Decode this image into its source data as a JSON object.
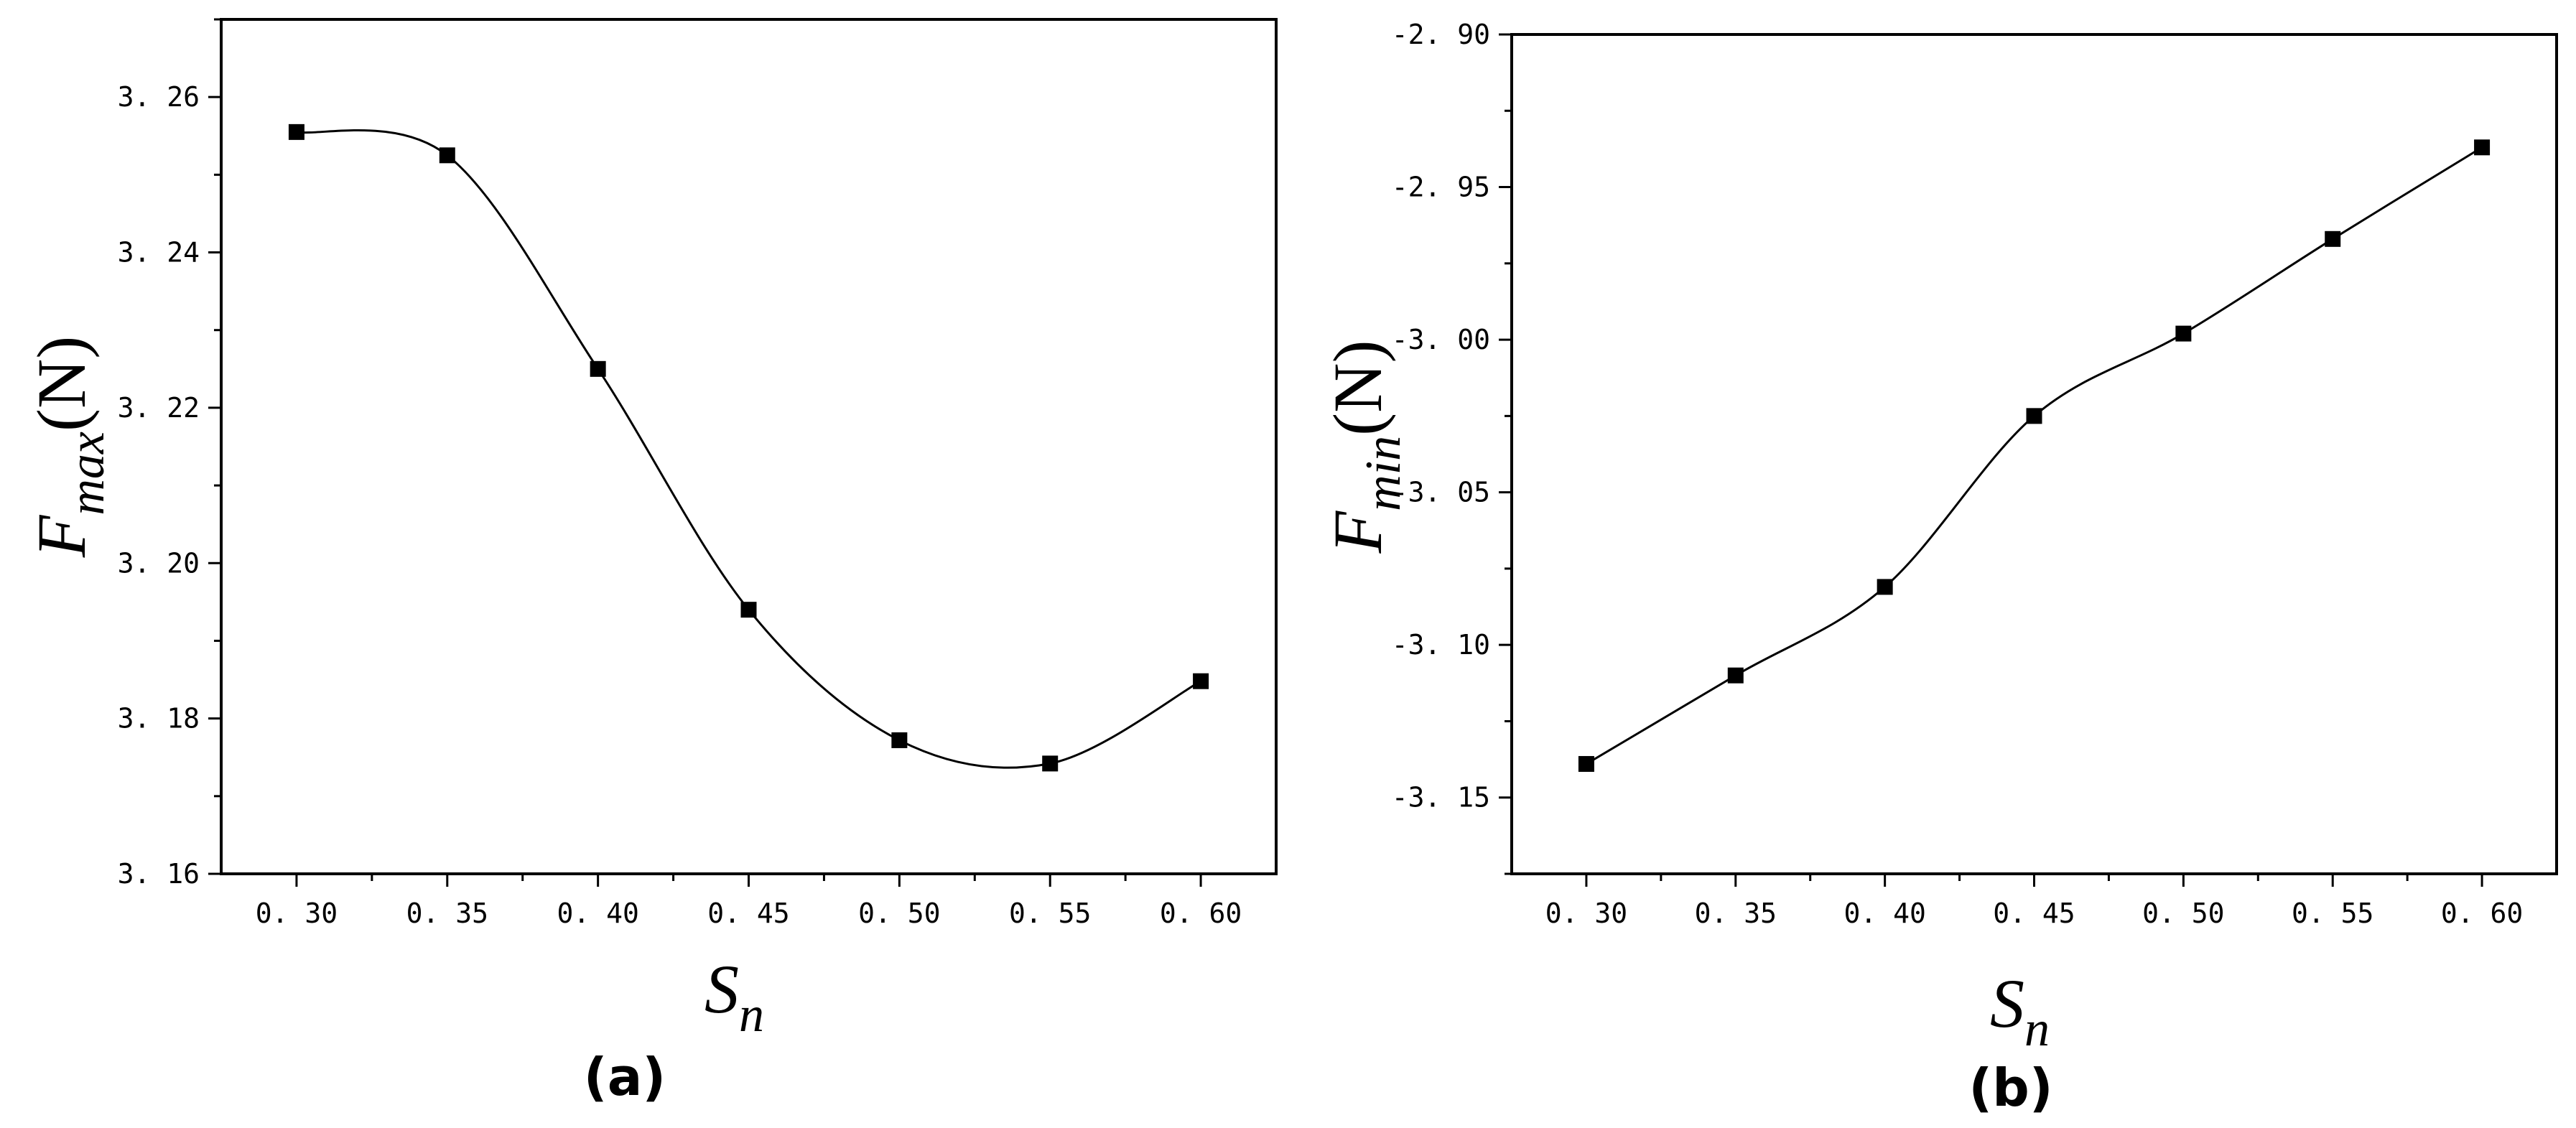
{
  "chart_data": [
    {
      "type": "line",
      "panel_label": "(a)",
      "xlabel": "S",
      "xlabel_sub": "n",
      "ylabel": "F",
      "ylabel_sub": "max",
      "ylabel_unit": "(N)",
      "xlim": [
        0.275,
        0.625
      ],
      "ylim": [
        3.16,
        3.27
      ],
      "xticks": [
        0.3,
        0.35,
        0.4,
        0.45,
        0.5,
        0.55,
        0.6
      ],
      "xtick_labels": [
        "0. 30",
        "0. 35",
        "0. 40",
        "0. 45",
        "0. 50",
        "0. 55",
        "0. 60"
      ],
      "yticks": [
        3.16,
        3.18,
        3.2,
        3.22,
        3.24,
        3.26
      ],
      "ytick_labels": [
        "3. 16",
        "3. 18",
        "3. 20",
        "3. 22",
        "3. 24",
        "3. 26"
      ],
      "x": [
        0.3,
        0.35,
        0.4,
        0.45,
        0.5,
        0.55,
        0.6
      ],
      "y": [
        3.2555,
        3.2525,
        3.225,
        3.194,
        3.1772,
        3.1742,
        3.1848
      ],
      "marker": "square",
      "smooth": true,
      "grid": false
    },
    {
      "type": "line",
      "panel_label": "(b)",
      "xlabel": "S",
      "xlabel_sub": "n",
      "ylabel": "F",
      "ylabel_sub": "min",
      "ylabel_unit": "(N)",
      "xlim": [
        0.275,
        0.625
      ],
      "ylim": [
        -3.175,
        -2.9
      ],
      "xticks": [
        0.3,
        0.35,
        0.4,
        0.45,
        0.5,
        0.55,
        0.6
      ],
      "xtick_labels": [
        "0. 30",
        "0. 35",
        "0. 40",
        "0. 45",
        "0. 50",
        "0. 55",
        "0. 60"
      ],
      "yticks": [
        -3.15,
        -3.1,
        -3.05,
        -3.0,
        -2.95,
        -2.9
      ],
      "ytick_labels": [
        "-3. 15",
        "-3. 10",
        "-3. 05",
        "-3. 00",
        "-2. 95",
        "-2. 90"
      ],
      "x": [
        0.3,
        0.35,
        0.4,
        0.45,
        0.5,
        0.55,
        0.6
      ],
      "y": [
        -3.139,
        -3.11,
        -3.081,
        -3.025,
        -2.998,
        -2.967,
        -2.937
      ],
      "marker": "square",
      "smooth": true,
      "grid": false
    }
  ]
}
